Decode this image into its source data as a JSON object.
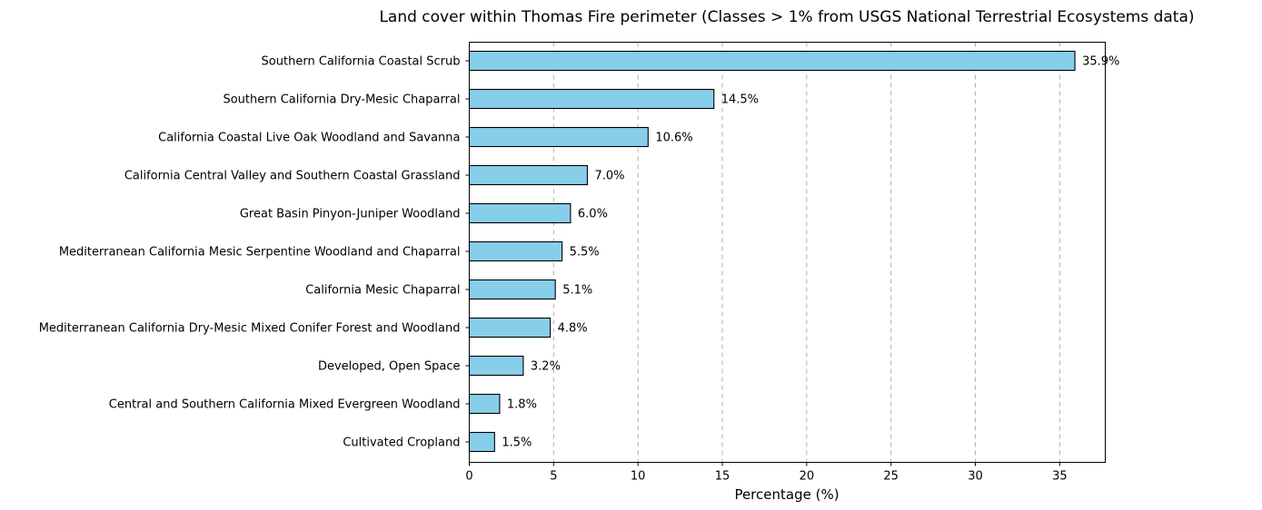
{
  "chart_data": {
    "type": "bar",
    "orientation": "horizontal",
    "title": "Land cover within Thomas Fire perimeter (Classes > 1% from USGS National Terrestrial Ecosystems data)",
    "xlabel": "Percentage (%)",
    "ylabel": "",
    "xlim": [
      0,
      37.7
    ],
    "xticks": [
      0,
      5,
      10,
      15,
      20,
      25,
      30,
      35
    ],
    "grid": "x, dashed",
    "colors": {
      "bar_fill": "#87CEEB",
      "bar_edge": "#000000",
      "grid": "#b0b0b0"
    },
    "categories": [
      "Southern California Coastal Scrub",
      "Southern California Dry-Mesic Chaparral",
      "California Coastal Live Oak Woodland and Savanna",
      "California Central Valley and Southern Coastal Grassland",
      "Great Basin Pinyon-Juniper Woodland",
      "Mediterranean California Mesic Serpentine Woodland and Chaparral",
      "California Mesic Chaparral",
      "Mediterranean California Dry-Mesic Mixed Conifer Forest and Woodland",
      "Developed, Open Space",
      "Central and Southern California Mixed Evergreen Woodland",
      "Cultivated Cropland"
    ],
    "values": [
      35.9,
      14.5,
      10.6,
      7.0,
      6.0,
      5.5,
      5.1,
      4.8,
      3.2,
      1.8,
      1.5
    ],
    "data_labels": [
      "35.9%",
      "14.5%",
      "10.6%",
      "7.0%",
      "6.0%",
      "5.5%",
      "5.1%",
      "4.8%",
      "3.2%",
      "1.8%",
      "1.5%"
    ]
  }
}
